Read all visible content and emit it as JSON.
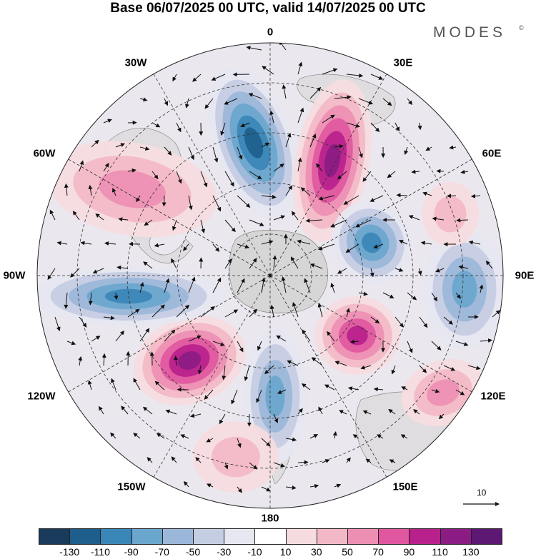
{
  "title": "Base 06/07/2025 00 UTC, valid 14/07/2025 00 UTC",
  "brand": {
    "name": "MODES",
    "mark": "©"
  },
  "map": {
    "projection": "south-polar-stereographic",
    "longitude_labels": {
      "lon_0": "0",
      "lon_30e": "30E",
      "lon_60e": "60E",
      "lon_90e": "90E",
      "lon_120e": "120E",
      "lon_150e": "150E",
      "lon_180": "180",
      "lon_150w": "150W",
      "lon_120w": "120W",
      "lon_90w": "90W",
      "lon_60w": "60W",
      "lon_30w": "30W"
    },
    "reference_vector_label": "10",
    "fields": "anomaly-shading-with-wind-vectors",
    "land_color": "#d6d6d6"
  },
  "colorbar": {
    "colors": [
      "#193a5b",
      "#1d5e8c",
      "#3a86b8",
      "#6aa6cd",
      "#9bb7d9",
      "#c5cde3",
      "#e6e7f1",
      "#ffffff",
      "#f6dcdf",
      "#f3b8c6",
      "#ed8fb3",
      "#e0579f",
      "#b8208c",
      "#8b1c84",
      "#5c1873"
    ],
    "tick_labels": [
      "-130",
      "-110",
      "-90",
      "-70",
      "-50",
      "-30",
      "-10",
      "10",
      "30",
      "50",
      "70",
      "90",
      "110",
      "130"
    ]
  }
}
